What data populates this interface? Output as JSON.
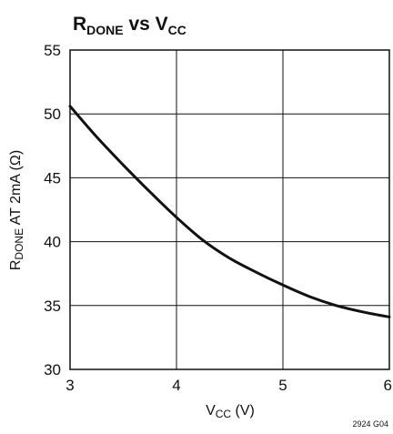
{
  "chart_data": {
    "type": "line",
    "title": {
      "main": "R",
      "sub": "DONE",
      "mid": " vs V",
      "sub2": "CC"
    },
    "xlabel": {
      "main": "V",
      "sub": "CC",
      "rest": " (V)"
    },
    "ylabel": {
      "main": "R",
      "sub": "DONE",
      "rest": " AT 2mA (Ω)"
    },
    "xlim": [
      3,
      6
    ],
    "ylim": [
      30,
      55
    ],
    "xticks": [
      "3",
      "4",
      "5",
      "6"
    ],
    "yticks": [
      "30",
      "35",
      "40",
      "45",
      "50",
      "55"
    ],
    "grid": true,
    "series": [
      {
        "x": [
          3.0,
          3.25,
          3.5,
          3.75,
          4.0,
          4.25,
          4.5,
          4.75,
          5.0,
          5.25,
          5.5,
          5.75,
          6.0
        ],
        "y": [
          50.6,
          48.2,
          46.0,
          43.9,
          41.9,
          40.1,
          38.7,
          37.6,
          36.6,
          35.7,
          35.0,
          34.5,
          34.1
        ]
      }
    ],
    "figure_id": "2924 G04",
    "colors": {
      "line": "#111111",
      "grid": "#111111"
    }
  }
}
